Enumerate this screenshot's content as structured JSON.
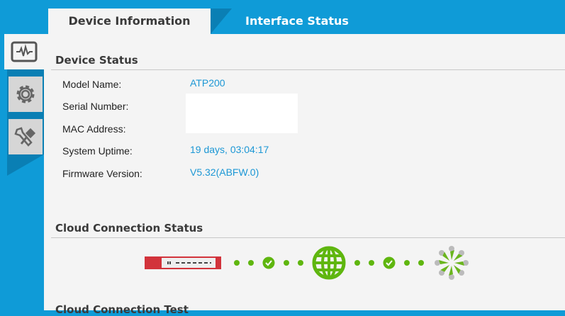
{
  "tabs": [
    {
      "label": "Device Information",
      "active": true
    },
    {
      "label": "Interface Status",
      "active": false
    }
  ],
  "sidebar": {
    "items": [
      {
        "icon": "activity-monitor-icon",
        "active": true
      },
      {
        "icon": "gear-icon",
        "active": false
      },
      {
        "icon": "tools-icon",
        "active": false
      }
    ]
  },
  "device_status": {
    "title": "Device Status",
    "fields": [
      {
        "label": "Model Name:",
        "value": "ATP200"
      },
      {
        "label": "Serial Number:",
        "value": ""
      },
      {
        "label": "MAC Address:",
        "value": ""
      },
      {
        "label": "System Uptime:",
        "value": "19 days, 03:04:17"
      },
      {
        "label": "Firmware Version:",
        "value": "V5.32(ABFW.0)"
      }
    ]
  },
  "cloud_status": {
    "title": "Cloud Connection Status",
    "status_color": "#5fb60f"
  },
  "cloud_test": {
    "title": "Cloud Connection Test"
  },
  "colors": {
    "brand_blue": "#0f9bd7",
    "value_blue": "#1c97d5",
    "ok_green": "#5fb60f",
    "device_red": "#d2333b"
  }
}
